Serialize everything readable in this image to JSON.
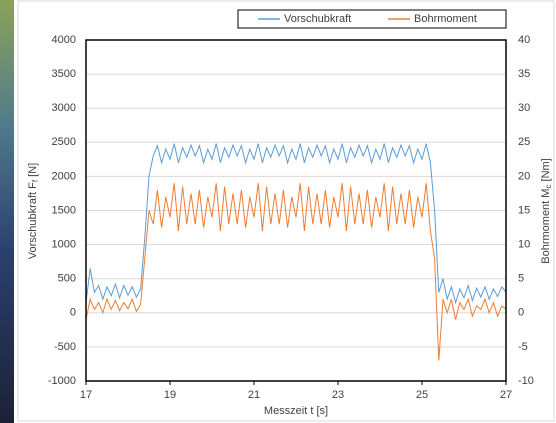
{
  "chart_data": {
    "type": "line",
    "x_label": "Messzeit t [s]",
    "y_label_parts": [
      "Vorschubkraft F",
      "f",
      " [N]"
    ],
    "y2_label_parts": [
      "Bohrmoment M",
      "c",
      " [Nm]"
    ],
    "x": [
      17,
      17.1,
      17.2,
      17.3,
      17.4,
      17.5,
      17.6,
      17.7,
      17.8,
      17.9,
      18,
      18.1,
      18.2,
      18.3,
      18.4,
      18.5,
      18.6,
      18.7,
      18.8,
      18.9,
      19,
      19.1,
      19.2,
      19.3,
      19.4,
      19.5,
      19.6,
      19.7,
      19.8,
      19.9,
      20,
      20.1,
      20.2,
      20.3,
      20.4,
      20.5,
      20.6,
      20.7,
      20.8,
      20.9,
      21,
      21.1,
      21.2,
      21.3,
      21.4,
      21.5,
      21.6,
      21.7,
      21.8,
      21.9,
      22,
      22.1,
      22.2,
      22.3,
      22.4,
      22.5,
      22.6,
      22.7,
      22.8,
      22.9,
      23,
      23.1,
      23.2,
      23.3,
      23.4,
      23.5,
      23.6,
      23.7,
      23.8,
      23.9,
      24,
      24.1,
      24.2,
      24.3,
      24.4,
      24.5,
      24.6,
      24.7,
      24.8,
      24.9,
      25,
      25.1,
      25.2,
      25.3,
      25.4,
      25.5,
      25.6,
      25.7,
      25.8,
      25.9,
      26,
      26.1,
      26.2,
      26.3,
      26.4,
      26.5,
      26.6,
      26.7,
      26.8,
      26.9,
      27
    ],
    "series": [
      {
        "name": "Vorschubkraft",
        "color": "#5b9bd5",
        "axis": "y",
        "values": [
          150,
          650,
          300,
          400,
          200,
          380,
          250,
          420,
          220,
          400,
          260,
          380,
          230,
          350,
          1100,
          2000,
          2300,
          2450,
          2200,
          2400,
          2250,
          2480,
          2200,
          2420,
          2280,
          2460,
          2300,
          2450,
          2200,
          2400,
          2250,
          2480,
          2200,
          2420,
          2280,
          2460,
          2300,
          2450,
          2200,
          2400,
          2250,
          2480,
          2200,
          2420,
          2280,
          2460,
          2300,
          2450,
          2200,
          2400,
          2250,
          2480,
          2200,
          2420,
          2280,
          2460,
          2300,
          2450,
          2200,
          2400,
          2250,
          2480,
          2200,
          2420,
          2280,
          2460,
          2300,
          2450,
          2200,
          2400,
          2250,
          2480,
          2200,
          2420,
          2280,
          2460,
          2300,
          2450,
          2200,
          2400,
          2250,
          2480,
          2200,
          1500,
          300,
          500,
          200,
          380,
          150,
          350,
          220,
          400,
          180,
          360,
          230,
          380,
          200,
          350,
          240,
          380,
          300
        ]
      },
      {
        "name": "Bohrmoment",
        "color": "#ed7d31",
        "axis": "y2",
        "values": [
          -1,
          2,
          0.5,
          1.5,
          0,
          2,
          0.5,
          1.8,
          0.3,
          1.5,
          0.6,
          2,
          0.2,
          1.2,
          8,
          15,
          13,
          18,
          12.5,
          17,
          14,
          19,
          12,
          18.5,
          13,
          17.5,
          13,
          18,
          12.5,
          17,
          14,
          19,
          12,
          18.5,
          13,
          17.5,
          13,
          18,
          12.5,
          17,
          14,
          19,
          12,
          18.5,
          13,
          17.5,
          13,
          18,
          12.5,
          17,
          14,
          19,
          12,
          18.5,
          13,
          17.5,
          13,
          18,
          12.5,
          17,
          14,
          19,
          12,
          18.5,
          13,
          17.5,
          13,
          18,
          12.5,
          17,
          14,
          19,
          12,
          18.5,
          13,
          17.5,
          13,
          18,
          12.5,
          17,
          14,
          19,
          12,
          8,
          -7,
          2,
          0,
          2,
          -1,
          1.5,
          0.5,
          2,
          -0.5,
          1,
          0.5,
          2,
          0,
          1.5,
          -0.5,
          1,
          0.5
        ]
      }
    ],
    "xlim": [
      17,
      27
    ],
    "xticks": [
      17,
      19,
      21,
      23,
      25,
      27
    ],
    "ylim": [
      -1000,
      4000
    ],
    "yticks": [
      -1000,
      -500,
      0,
      500,
      1000,
      1500,
      2000,
      2500,
      3000,
      3500,
      4000
    ],
    "y2lim": [
      -10,
      40
    ],
    "y2ticks": [
      -10,
      -5,
      0,
      5,
      10,
      15,
      20,
      25,
      30,
      35,
      40
    ],
    "grid": true,
    "legend": "top-right"
  }
}
